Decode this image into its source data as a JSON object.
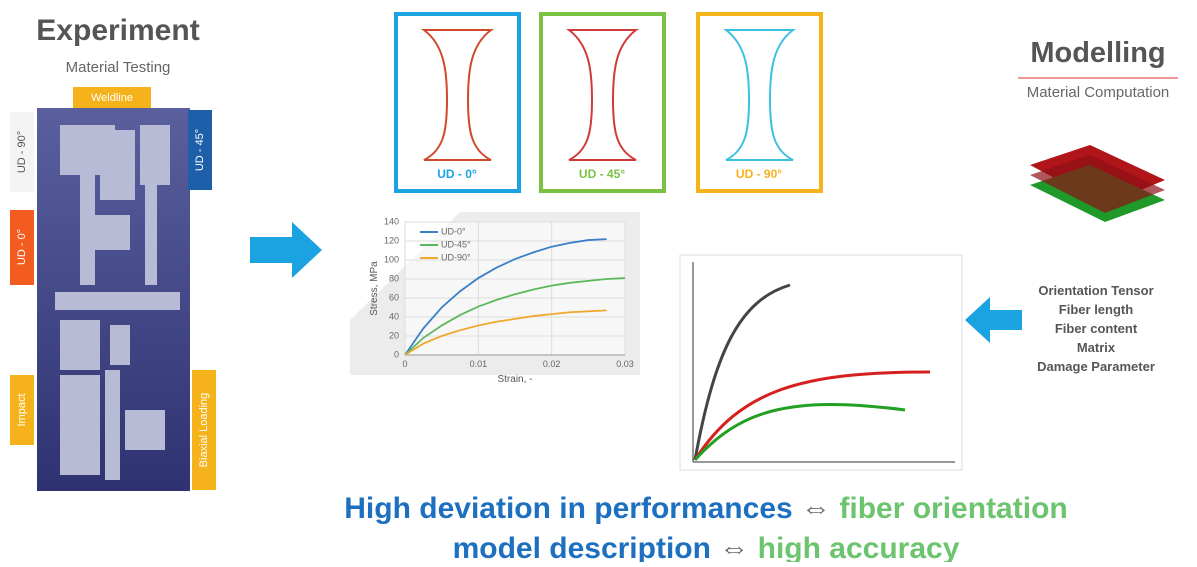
{
  "experiment": {
    "title": "Experiment",
    "subtitle": "Material Testing",
    "labels": {
      "weldline": "Weldline",
      "ud90": "UD - 90°",
      "ud45": "UD - 45°",
      "ud0": "UD - 0°",
      "impact": "Impact",
      "biaxial": "Biaxial Loading"
    }
  },
  "specimens": [
    {
      "label": "UD - 0°",
      "color": "#1aa3e0"
    },
    {
      "label": "UD - 45°",
      "color": "#7cc242"
    },
    {
      "label": "UD - 90°",
      "color": "#f5b21b"
    }
  ],
  "chart_data": {
    "type": "line",
    "ylabel": "Stress, MPa",
    "xlabel": "Strain, -",
    "x": [
      0,
      0.0025,
      0.005,
      0.0075,
      0.01,
      0.0125,
      0.015,
      0.0175,
      0.02,
      0.0225,
      0.025,
      0.0275,
      0.03
    ],
    "series": [
      {
        "name": "UD-0°",
        "color": "#3a7fc8",
        "values": [
          0,
          28,
          50,
          67,
          81,
          92,
          101,
          108,
          114,
          118,
          121,
          122,
          null
        ]
      },
      {
        "name": "UD-45°",
        "color": "#5cb85c",
        "values": [
          0,
          18,
          31,
          42,
          51,
          58,
          64,
          69,
          73,
          76,
          78,
          80,
          81
        ]
      },
      {
        "name": "UD-90°",
        "color": "#f0a830",
        "values": [
          0,
          12,
          20,
          26,
          31,
          35,
          38,
          41,
          43,
          45,
          46,
          47,
          null
        ]
      }
    ],
    "xlim": [
      0,
      0.03
    ],
    "ylim": [
      0,
      140
    ],
    "xticks": [
      0,
      0.01,
      0.02,
      0.03
    ],
    "yticks": [
      0,
      20,
      40,
      60,
      80,
      100,
      120,
      140
    ],
    "grid": true
  },
  "modelling": {
    "title": "Modelling",
    "subtitle": "Material Computation",
    "parameters": [
      "Orientation Tensor",
      "Fiber length",
      "Fiber content",
      "Matrix",
      "Damage Parameter"
    ]
  },
  "statement": {
    "line1": [
      "High deviation in performances",
      "⇔",
      "fiber orientation"
    ],
    "line2": [
      "model description",
      "⇔",
      "high accuracy"
    ]
  }
}
